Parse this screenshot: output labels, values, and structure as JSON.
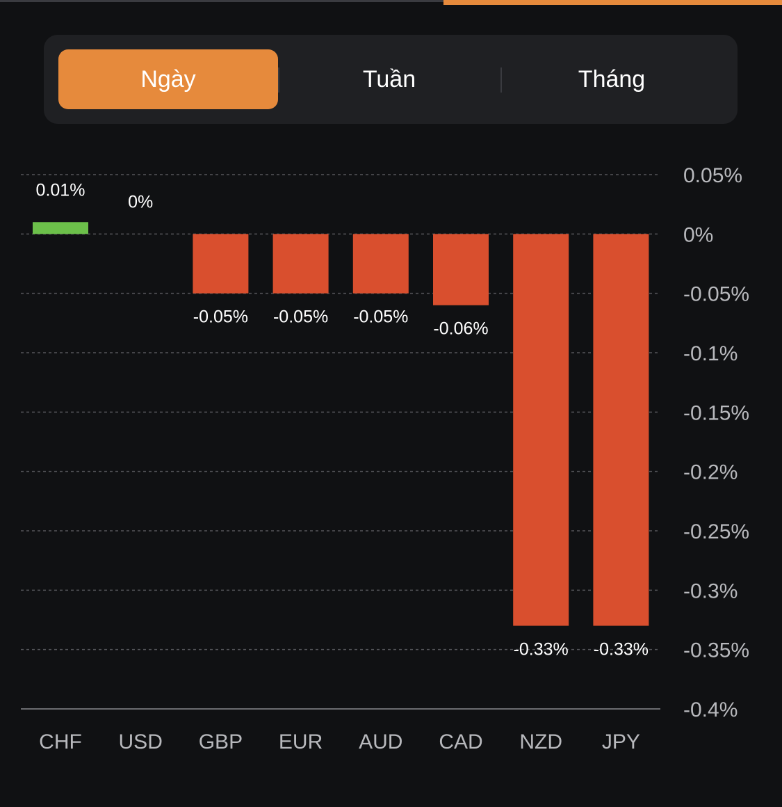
{
  "tabs": {
    "items": [
      {
        "label": "Ngày",
        "active": true
      },
      {
        "label": "Tuần",
        "active": false
      },
      {
        "label": "Tháng",
        "active": false
      }
    ],
    "accent": "#e68a3c"
  },
  "chart_data": {
    "type": "bar",
    "categories": [
      "CHF",
      "USD",
      "GBP",
      "EUR",
      "AUD",
      "CAD",
      "NZD",
      "JPY"
    ],
    "values": [
      0.01,
      0,
      -0.05,
      -0.05,
      -0.05,
      -0.06,
      -0.33,
      -0.33
    ],
    "data_labels": [
      "0.01%",
      "0%",
      "-0.05%",
      "-0.05%",
      "-0.05%",
      "-0.06%",
      "-0.33%",
      "-0.33%"
    ],
    "ylim": [
      -0.4,
      0.05
    ],
    "yticks": [
      0.05,
      0,
      -0.05,
      -0.1,
      -0.15,
      -0.2,
      -0.25,
      -0.3,
      -0.35,
      -0.4
    ],
    "ytick_labels": [
      "0.05%",
      "0%",
      "-0.05%",
      "-0.1%",
      "-0.15%",
      "-0.2%",
      "-0.25%",
      "-0.3%",
      "-0.35%",
      "-0.4%"
    ],
    "y_axis_position": "right",
    "grid": true,
    "colors": {
      "positive": "#6cc04a",
      "negative": "#d94f2e"
    }
  }
}
